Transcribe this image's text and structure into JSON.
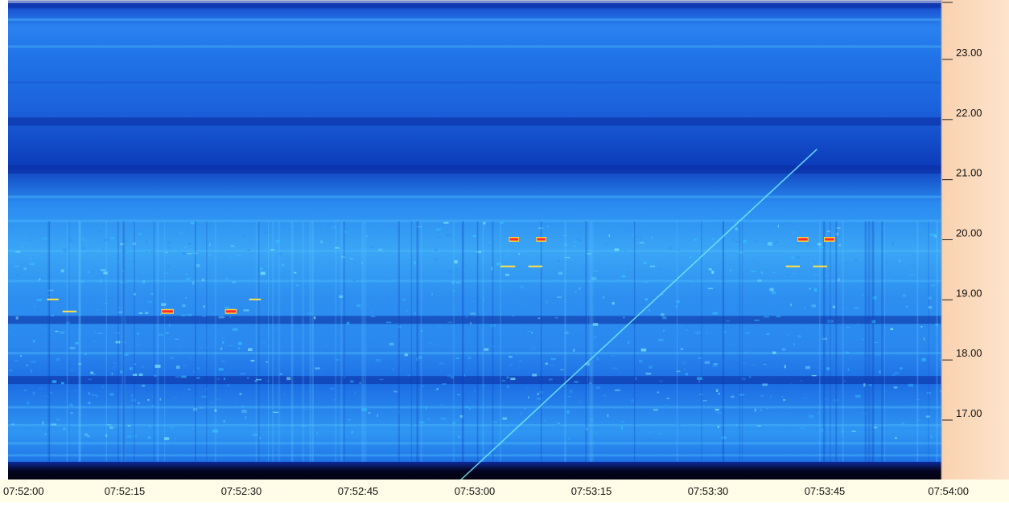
{
  "chart_data": {
    "type": "heatmap",
    "title": "",
    "xlabel": "",
    "ylabel": "",
    "x_ticks": [
      "07:52:00",
      "07:52:15",
      "07:52:30",
      "07:52:45",
      "07:53:00",
      "07:53:15",
      "07:53:30",
      "07:53:45",
      "07:54:00"
    ],
    "x_range_seconds": [
      0,
      120
    ],
    "y_ticks": [
      "17.00",
      "18.00",
      "19.00",
      "20.00",
      "21.00",
      "22.00",
      "23.00"
    ],
    "y_range": [
      16.0,
      23.9
    ],
    "grid": false,
    "colors": {
      "background": "#1a5de0",
      "deep": "#0a2fb0",
      "noise": "#29c9ff",
      "hot": "#ff2a2a",
      "warm": "#ffe14a",
      "axis_panel": "#fbd7b8",
      "floor": "#05051a"
    },
    "horizontal_bands": [
      {
        "y": 23.85,
        "intensity": "deep"
      },
      {
        "y": 23.55,
        "intensity": "light"
      },
      {
        "y": 23.1,
        "intensity": "light"
      },
      {
        "y": 22.5,
        "intensity": "mid"
      },
      {
        "y": 21.9,
        "intensity": "deep"
      },
      {
        "y": 21.1,
        "intensity": "deep"
      },
      {
        "y": 20.6,
        "intensity": "light"
      },
      {
        "y": 20.2,
        "intensity": "light"
      },
      {
        "y": 19.7,
        "intensity": "light"
      },
      {
        "y": 19.2,
        "intensity": "light"
      },
      {
        "y": 18.6,
        "intensity": "deep"
      },
      {
        "y": 18.0,
        "intensity": "light"
      },
      {
        "y": 17.6,
        "intensity": "deep"
      },
      {
        "y": 17.1,
        "intensity": "light"
      },
      {
        "y": 16.8,
        "intensity": "light"
      },
      {
        "y": 16.5,
        "intensity": "light"
      },
      {
        "y": 16.3,
        "intensity": "light"
      }
    ],
    "signals": [
      {
        "t_start": 64.5,
        "t_end": 65.6,
        "y": 19.9,
        "level": "hot"
      },
      {
        "t_start": 68.0,
        "t_end": 69.1,
        "y": 19.9,
        "level": "hot"
      },
      {
        "t_start": 101.6,
        "t_end": 102.8,
        "y": 19.9,
        "level": "hot"
      },
      {
        "t_start": 105.0,
        "t_end": 106.2,
        "y": 19.9,
        "level": "hot"
      },
      {
        "t_start": 19.8,
        "t_end": 21.2,
        "y": 18.7,
        "level": "hot"
      },
      {
        "t_start": 28.0,
        "t_end": 29.3,
        "y": 18.7,
        "level": "hot"
      },
      {
        "t_start": 5.0,
        "t_end": 6.5,
        "y": 18.9,
        "level": "warm"
      },
      {
        "t_start": 7.0,
        "t_end": 8.8,
        "y": 18.7,
        "level": "warm"
      },
      {
        "t_start": 31.0,
        "t_end": 32.5,
        "y": 18.9,
        "level": "warm"
      },
      {
        "t_start": 63.3,
        "t_end": 65.2,
        "y": 19.45,
        "level": "warm"
      },
      {
        "t_start": 66.9,
        "t_end": 68.7,
        "y": 19.45,
        "level": "warm"
      },
      {
        "t_start": 100.0,
        "t_end": 101.8,
        "y": 19.45,
        "level": "warm"
      },
      {
        "t_start": 103.5,
        "t_end": 105.3,
        "y": 19.45,
        "level": "warm"
      }
    ],
    "sweep_line": {
      "t_start": 57.5,
      "y_start": 16.0,
      "t_end": 104.0,
      "y_end": 21.4
    }
  }
}
